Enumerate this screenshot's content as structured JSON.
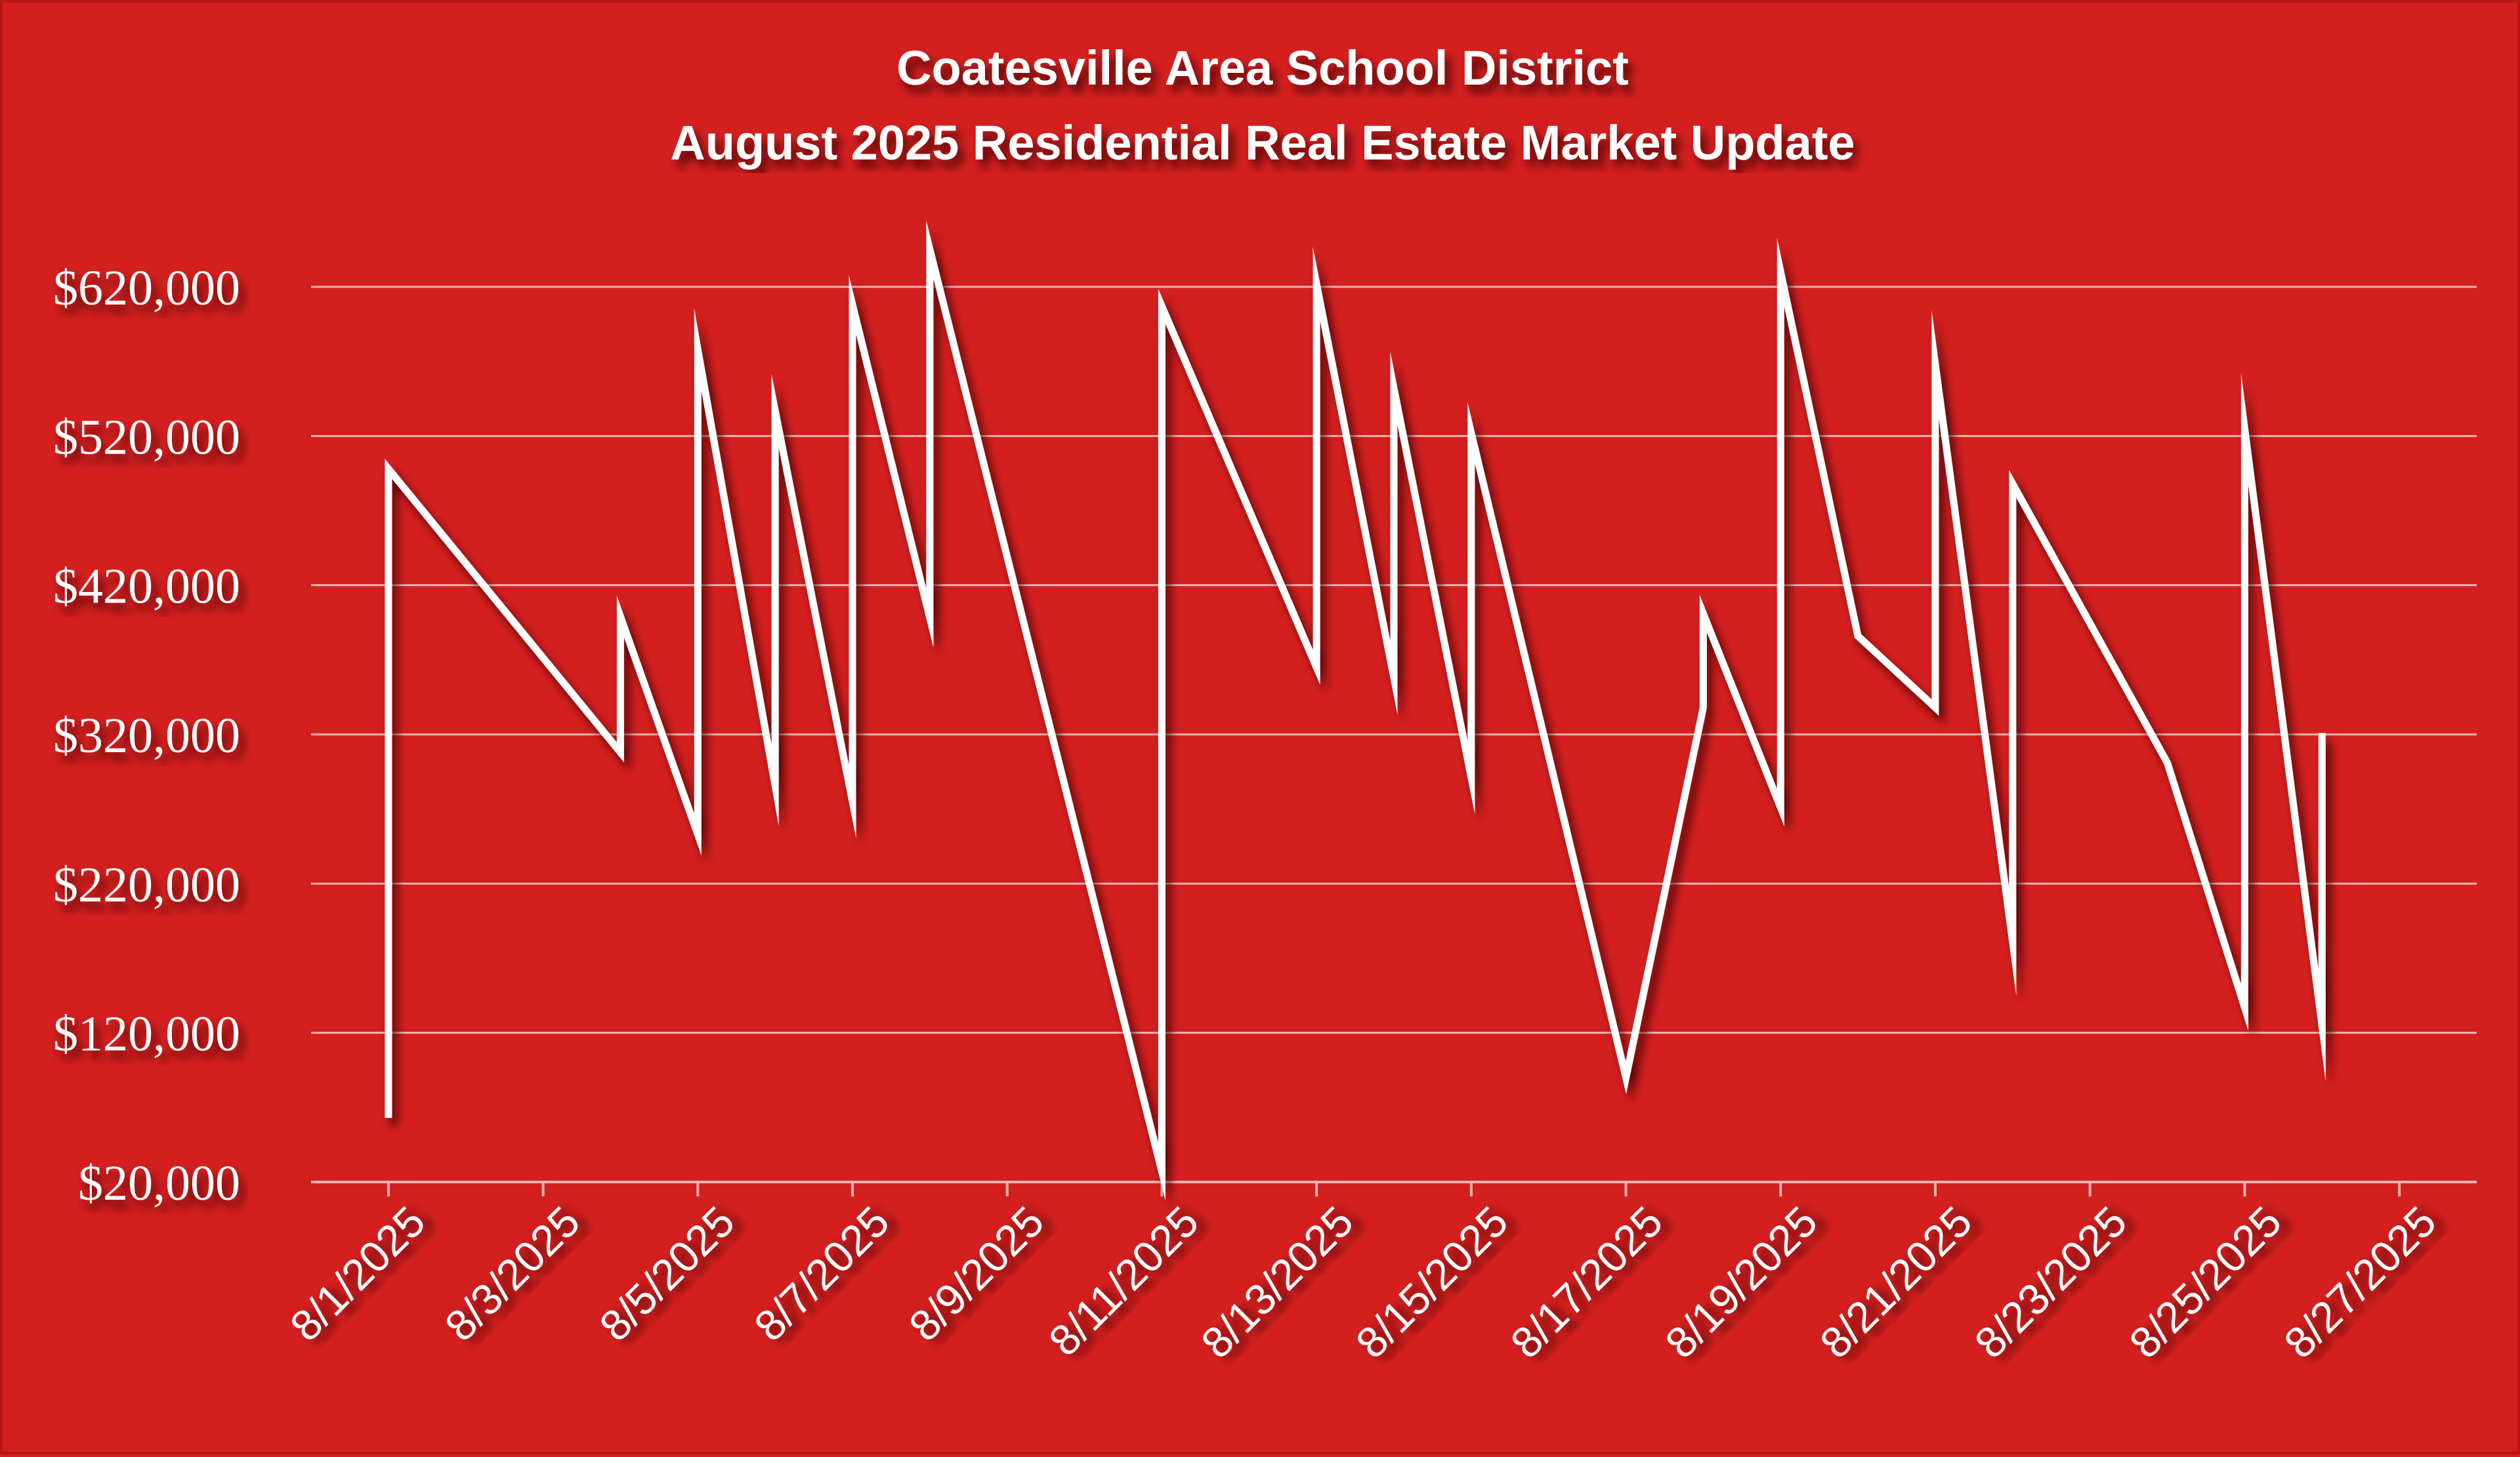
{
  "chart_data": {
    "type": "line",
    "title": [
      "Coatesville Area School District",
      "August 2025 Residential Real Estate Market Update"
    ],
    "xlabel": "",
    "ylabel": "",
    "ylim": [
      20000,
      660000
    ],
    "ytick_values": [
      20000,
      120000,
      220000,
      320000,
      420000,
      520000,
      620000
    ],
    "ytick_labels": [
      "$20,000",
      "$120,000",
      "$220,000",
      "$320,000",
      "$420,000",
      "$520,000",
      "$620,000"
    ],
    "xlim": [
      "2025-07-31",
      "2025-08-28"
    ],
    "xtick_dates": [
      "2025-08-01",
      "2025-08-03",
      "2025-08-05",
      "2025-08-07",
      "2025-08-09",
      "2025-08-11",
      "2025-08-13",
      "2025-08-15",
      "2025-08-17",
      "2025-08-19",
      "2025-08-21",
      "2025-08-23",
      "2025-08-25",
      "2025-08-27"
    ],
    "xtick_labels": [
      "8/1/2025",
      "8/3/2025",
      "8/5/2025",
      "8/7/2025",
      "8/9/2025",
      "8/11/2025",
      "8/13/2025",
      "8/15/2025",
      "8/17/2025",
      "8/19/2025",
      "8/21/2025",
      "8/23/2025",
      "8/25/2025",
      "8/27/2025"
    ],
    "grid": true,
    "legend": false,
    "colors": {
      "background": "#d41f1f",
      "line": "#ffffff",
      "grid": "#f3b3b3",
      "text": "#ffffff"
    },
    "series": [
      {
        "x": [
          "2025-08-01",
          "2025-08-01",
          "2025-08-04",
          "2025-08-04",
          "2025-08-05",
          "2025-08-05",
          "2025-08-06",
          "2025-08-06",
          "2025-08-07",
          "2025-08-07",
          "2025-08-08",
          "2025-08-08",
          "2025-08-11",
          "2025-08-11",
          "2025-08-13",
          "2025-08-13",
          "2025-08-14",
          "2025-08-14",
          "2025-08-15",
          "2025-08-15",
          "2025-08-17",
          "2025-08-18",
          "2025-08-18",
          "2025-08-19",
          "2025-08-19",
          "2025-08-20",
          "2025-08-21",
          "2025-08-21",
          "2025-08-22",
          "2025-08-22",
          "2025-08-24",
          "2025-08-25",
          "2025-08-25",
          "2025-08-26",
          "2025-08-26"
        ],
        "values": [
          63000,
          498000,
          308000,
          399000,
          253000,
          578000,
          286000,
          537000,
          275000,
          608000,
          398000,
          645000,
          27000,
          607000,
          365000,
          622000,
          358000,
          552000,
          291000,
          522000,
          90000,
          338000,
          401000,
          271000,
          630000,
          386000,
          338000,
          568000,
          181000,
          488000,
          301000,
          137000,
          525000,
          125000,
          321000
        ]
      }
    ]
  }
}
